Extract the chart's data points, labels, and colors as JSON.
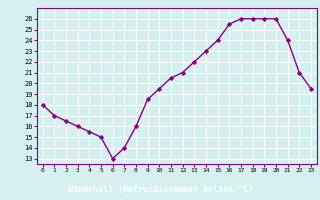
{
  "x": [
    0,
    1,
    2,
    3,
    4,
    5,
    6,
    7,
    8,
    9,
    10,
    11,
    12,
    13,
    14,
    15,
    16,
    17,
    18,
    19,
    20,
    21,
    22,
    23
  ],
  "y": [
    18.0,
    17.0,
    16.5,
    16.0,
    15.5,
    15.0,
    13.0,
    14.0,
    16.0,
    18.5,
    19.5,
    20.5,
    21.0,
    22.0,
    23.0,
    24.0,
    25.5,
    26.0,
    26.0,
    26.0,
    26.0,
    24.0,
    21.0,
    19.5
  ],
  "line_color": "#880088",
  "marker": "D",
  "marker_size": 2.2,
  "bg_color": "#d6f0f0",
  "grid_color": "#ffffff",
  "xlabel": "Windchill (Refroidissement éolien,°C)",
  "ylabel_ticks": [
    13,
    14,
    15,
    16,
    17,
    18,
    19,
    20,
    21,
    22,
    23,
    24,
    25,
    26
  ],
  "xlim": [
    -0.5,
    23.5
  ],
  "ylim": [
    12.5,
    27.0
  ],
  "xtick_labels": [
    "0",
    "1",
    "2",
    "3",
    "4",
    "5",
    "6",
    "7",
    "8",
    "9",
    "10",
    "11",
    "12",
    "13",
    "14",
    "15",
    "16",
    "17",
    "18",
    "19",
    "20",
    "21",
    "22",
    "23"
  ],
  "line_width": 1.0,
  "xlabel_bg": "#880088",
  "xlabel_text_color": "#ffffff",
  "tick_color": "#880088",
  "spine_color": "#880088"
}
